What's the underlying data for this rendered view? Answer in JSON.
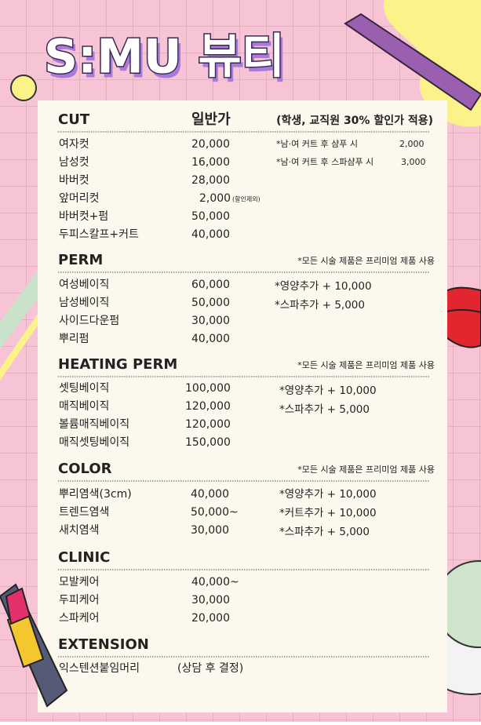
{
  "title": "S:MU 뷰티",
  "sections": [
    {
      "name": "CUT",
      "column": "일반가",
      "note": "(학생, 교직원 30% 할인가 적용)",
      "items": [
        {
          "name": "여자컷",
          "price": "20,000"
        },
        {
          "name": "남성컷",
          "price": "16,000"
        },
        {
          "name": "바버컷",
          "price": "28,000"
        },
        {
          "name": "앞머리컷",
          "price": "2,000",
          "remark": "(할인제외)"
        },
        {
          "name": "바버컷+펌",
          "price": "50,000"
        },
        {
          "name": "두피스칼프+커트",
          "price": "40,000"
        }
      ],
      "extras": [
        {
          "text": "*남·여 커트 후 샴푸 시",
          "price": "2,000"
        },
        {
          "text": "*남·여 커트 후 스파샴푸 시",
          "price": "3,000"
        }
      ]
    },
    {
      "name": "PERM",
      "note": "*모든 시술 제품은 프리미엄 제품 사용",
      "items": [
        {
          "name": "여성베이직",
          "price": "60,000"
        },
        {
          "name": "남성베이직",
          "price": "50,000"
        },
        {
          "name": "사이드다운펌",
          "price": "30,000"
        },
        {
          "name": "뿌리펌",
          "price": "40,000"
        }
      ],
      "extras": [
        {
          "text": "*영양추가 + 10,000"
        },
        {
          "text": "*스파추가 +  5,000"
        }
      ]
    },
    {
      "name": "HEATING PERM",
      "note": "*모든 시술 제품은 프리미엄 제품 사용",
      "items": [
        {
          "name": "셋팅베이직",
          "price": "100,000"
        },
        {
          "name": "매직베이직",
          "price": "120,000"
        },
        {
          "name": "볼륨매직베이직",
          "price": "120,000"
        },
        {
          "name": "매직셋팅베이직",
          "price": "150,000"
        }
      ],
      "extras": [
        {
          "text": "*영양추가 + 10,000"
        },
        {
          "text": "*스파추가 +  5,000"
        }
      ]
    },
    {
      "name": "COLOR",
      "note": "*모든 시술 제품은 프리미엄 제품 사용",
      "items": [
        {
          "name": "뿌리염색(3cm)",
          "price": "40,000"
        },
        {
          "name": "트렌드염색",
          "price": "50,000~"
        },
        {
          "name": "새치염색",
          "price": "30,000"
        }
      ],
      "extras": [
        {
          "text": "*영양추가 + 10,000"
        },
        {
          "text": "*커트추가 + 10,000"
        },
        {
          "text": "*스파추가 +   5,000"
        }
      ]
    },
    {
      "name": "CLINIC",
      "items": [
        {
          "name": "모발케어",
          "price": "40,000~"
        },
        {
          "name": "두피케어",
          "price": "30,000"
        },
        {
          "name": "스파케어",
          "price": "20,000"
        }
      ]
    },
    {
      "name": "EXTENSION",
      "items": [
        {
          "name": "익스텐션붙임머리",
          "price": "(상담 후 결정)"
        }
      ]
    }
  ]
}
